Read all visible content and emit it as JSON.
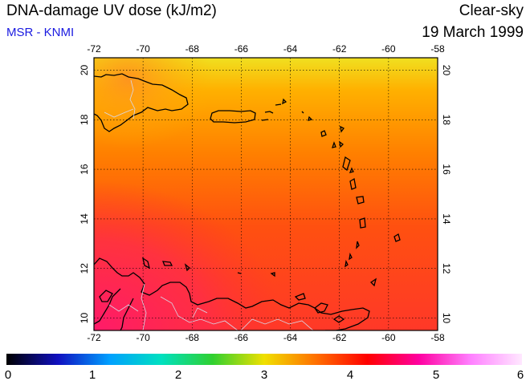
{
  "header": {
    "title": "DNA-damage UV dose (kJ/m2)",
    "credit": "MSR - KNMI",
    "regime": "Clear-sky",
    "date": "19 March 1999"
  },
  "map": {
    "lon_range": [
      -72,
      -58
    ],
    "lat_range": [
      9.5,
      20.5
    ],
    "lon_ticks": [
      -72,
      -70,
      -68,
      -66,
      -64,
      -62,
      -60,
      -58
    ],
    "lat_ticks": [
      10,
      12,
      14,
      16,
      18,
      20
    ],
    "lon_tick_labels": [
      "-72",
      "-70",
      "-68",
      "-66",
      "-64",
      "-62",
      "-60",
      "-58"
    ],
    "lat_tick_labels": [
      "10",
      "12",
      "14",
      "16",
      "18",
      "20"
    ],
    "gridlines": true,
    "field_colors": {
      "north": "#f0d020",
      "mid": "#ff8800",
      "south": "#ff3020",
      "coast_south": "#ff2060"
    }
  },
  "colorbar": {
    "min": 0,
    "max": 6,
    "tick_values": [
      0,
      1,
      2,
      3,
      4,
      5,
      6
    ],
    "tick_labels": [
      "0",
      "1",
      "2",
      "3",
      "4",
      "5",
      "6"
    ],
    "stops": [
      "#000000",
      "#1010c0",
      "#00a0ff",
      "#00e0c0",
      "#30d030",
      "#f0e000",
      "#ff7000",
      "#ff0000",
      "#ff00a0",
      "#ff80ff",
      "#ffe8ff"
    ]
  }
}
